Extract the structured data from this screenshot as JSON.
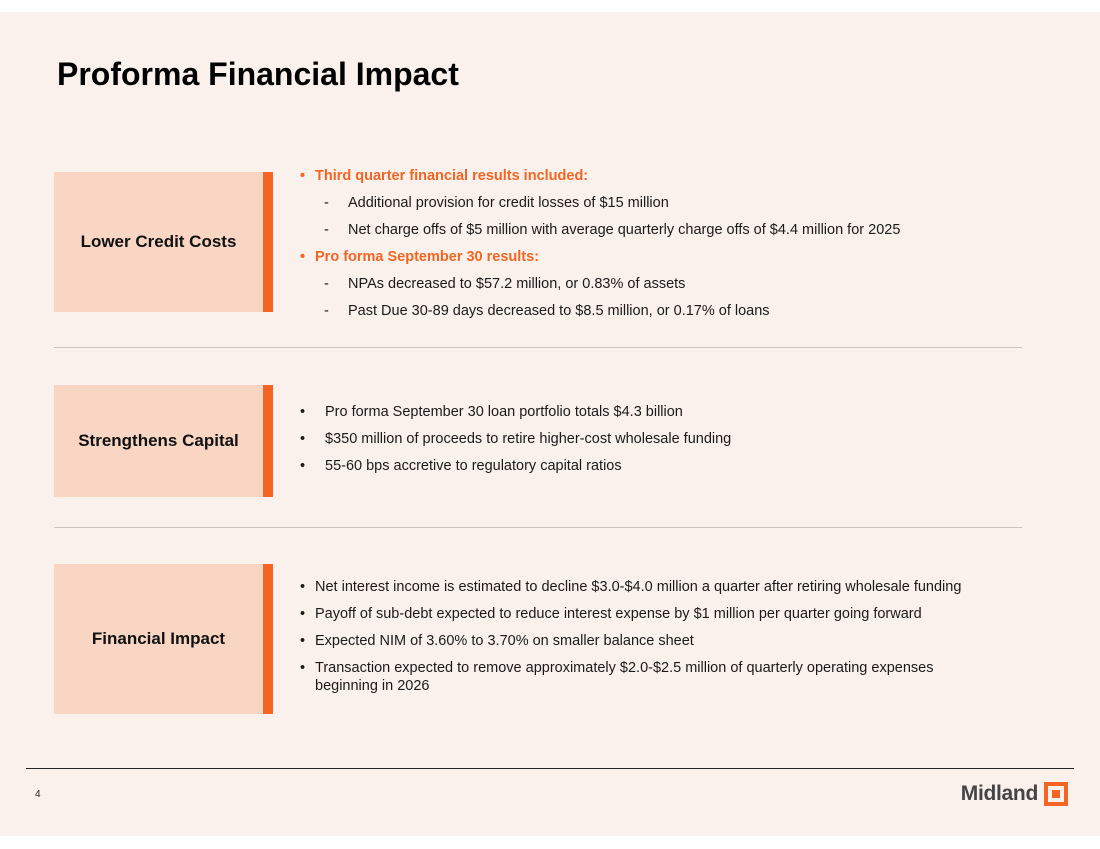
{
  "slide": {
    "title": "Proforma Financial Impact",
    "page_number": "4",
    "logo_text": "Midland"
  },
  "sections": [
    {
      "label": "Lower Credit Costs",
      "groups": [
        {
          "heading": "Third quarter financial results included:",
          "items": [
            "Additional provision for credit losses of $15 million",
            "Net charge offs of $5 million with average quarterly charge offs of $4.4 million for 2025"
          ]
        },
        {
          "heading": "Pro forma September 30 results:",
          "items": [
            "NPAs decreased to $57.2 million, or 0.83% of assets",
            "Past Due 30-89 days decreased to $8.5 million, or 0.17% of loans"
          ]
        }
      ]
    },
    {
      "label": "Strengthens Capital",
      "items": [
        "Pro forma September 30 loan portfolio totals $4.3 billion",
        "$350 million of proceeds to retire higher-cost wholesale funding",
        "55-60 bps accretive to regulatory capital ratios"
      ]
    },
    {
      "label": "Financial Impact",
      "items": [
        "Net interest income is estimated to decline $3.0-$4.0 million a quarter after retiring wholesale funding",
        "Payoff of sub-debt expected to reduce interest expense by $1 million per quarter going forward",
        "Expected NIM of 3.60% to 3.70% on smaller balance sheet",
        "Transaction expected to remove approximately $2.0-$2.5 million of quarterly operating expenses beginning in 2026"
      ]
    }
  ],
  "colors": {
    "accent": "#f26522",
    "label_fill": "#f8d6c3",
    "background": "#fbf1ec"
  }
}
